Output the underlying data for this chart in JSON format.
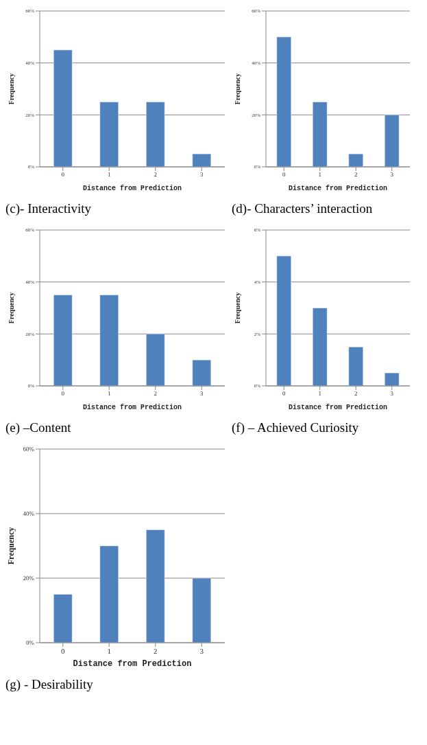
{
  "chart_data": [
    {
      "type": "bar",
      "title": "(c)- Interactivity",
      "categories": [
        "0",
        "1",
        "2",
        "3"
      ],
      "values": [
        45,
        25,
        25,
        5
      ],
      "color": "#4f81bd",
      "xlabel": "Distance from Prediction",
      "ylabel": "Frequency",
      "ylim": [
        0,
        60
      ],
      "yticks": [
        {
          "value": 0,
          "label": "0%"
        },
        {
          "value": 20,
          "label": "20%"
        },
        {
          "value": 40,
          "label": "40%"
        },
        {
          "value": 60,
          "label": "60%"
        }
      ],
      "grid": "y"
    },
    {
      "type": "bar",
      "title": "(d)- Characters’ interaction",
      "categories": [
        "0",
        "1",
        "2",
        "3"
      ],
      "values": [
        50,
        25,
        5,
        20
      ],
      "color": "#4f81bd",
      "xlabel": "Distance from Prediction",
      "ylabel": "Frequency",
      "ylim": [
        0,
        60
      ],
      "yticks": [
        {
          "value": 0,
          "label": "0%"
        },
        {
          "value": 20,
          "label": "20%"
        },
        {
          "value": 40,
          "label": "40%"
        },
        {
          "value": 60,
          "label": "60%"
        }
      ],
      "grid": "y"
    },
    {
      "type": "bar",
      "title": "(e) –Content",
      "categories": [
        "0",
        "1",
        "2",
        "3"
      ],
      "values": [
        35,
        35,
        20,
        10
      ],
      "color": "#4f81bd",
      "xlabel": "Distance from Prediction",
      "ylabel": "Frequency",
      "ylim": [
        0,
        60
      ],
      "yticks": [
        {
          "value": 0,
          "label": "0%"
        },
        {
          "value": 20,
          "label": "20%"
        },
        {
          "value": 40,
          "label": "40%"
        },
        {
          "value": 60,
          "label": "60%"
        }
      ],
      "grid": "y"
    },
    {
      "type": "bar",
      "title": "(f) – Achieved Curiosity",
      "categories": [
        "0",
        "1",
        "2",
        "3"
      ],
      "values": [
        5,
        3,
        1.5,
        0.5
      ],
      "color": "#4f81bd",
      "xlabel": "Distance from Prediction",
      "ylabel": "Frequency",
      "ylim": [
        0,
        6
      ],
      "yticks": [
        {
          "value": 0,
          "label": "0%"
        },
        {
          "value": 2,
          "label": "2%"
        },
        {
          "value": 4,
          "label": "4%"
        },
        {
          "value": 6,
          "label": "6%"
        }
      ],
      "grid": "y"
    },
    {
      "type": "bar",
      "title": "(g) - Desirability",
      "categories": [
        "0",
        "1",
        "2",
        "3"
      ],
      "values": [
        15,
        30,
        35,
        20
      ],
      "color": "#4f81bd",
      "xlabel": "Distance from Prediction",
      "ylabel": "Frequency",
      "ylim": [
        0,
        60
      ],
      "yticks": [
        {
          "value": 0,
          "label": "0%"
        },
        {
          "value": 20,
          "label": "20%"
        },
        {
          "value": 40,
          "label": "40%"
        },
        {
          "value": 60,
          "label": "60%"
        }
      ],
      "grid": "y"
    }
  ]
}
